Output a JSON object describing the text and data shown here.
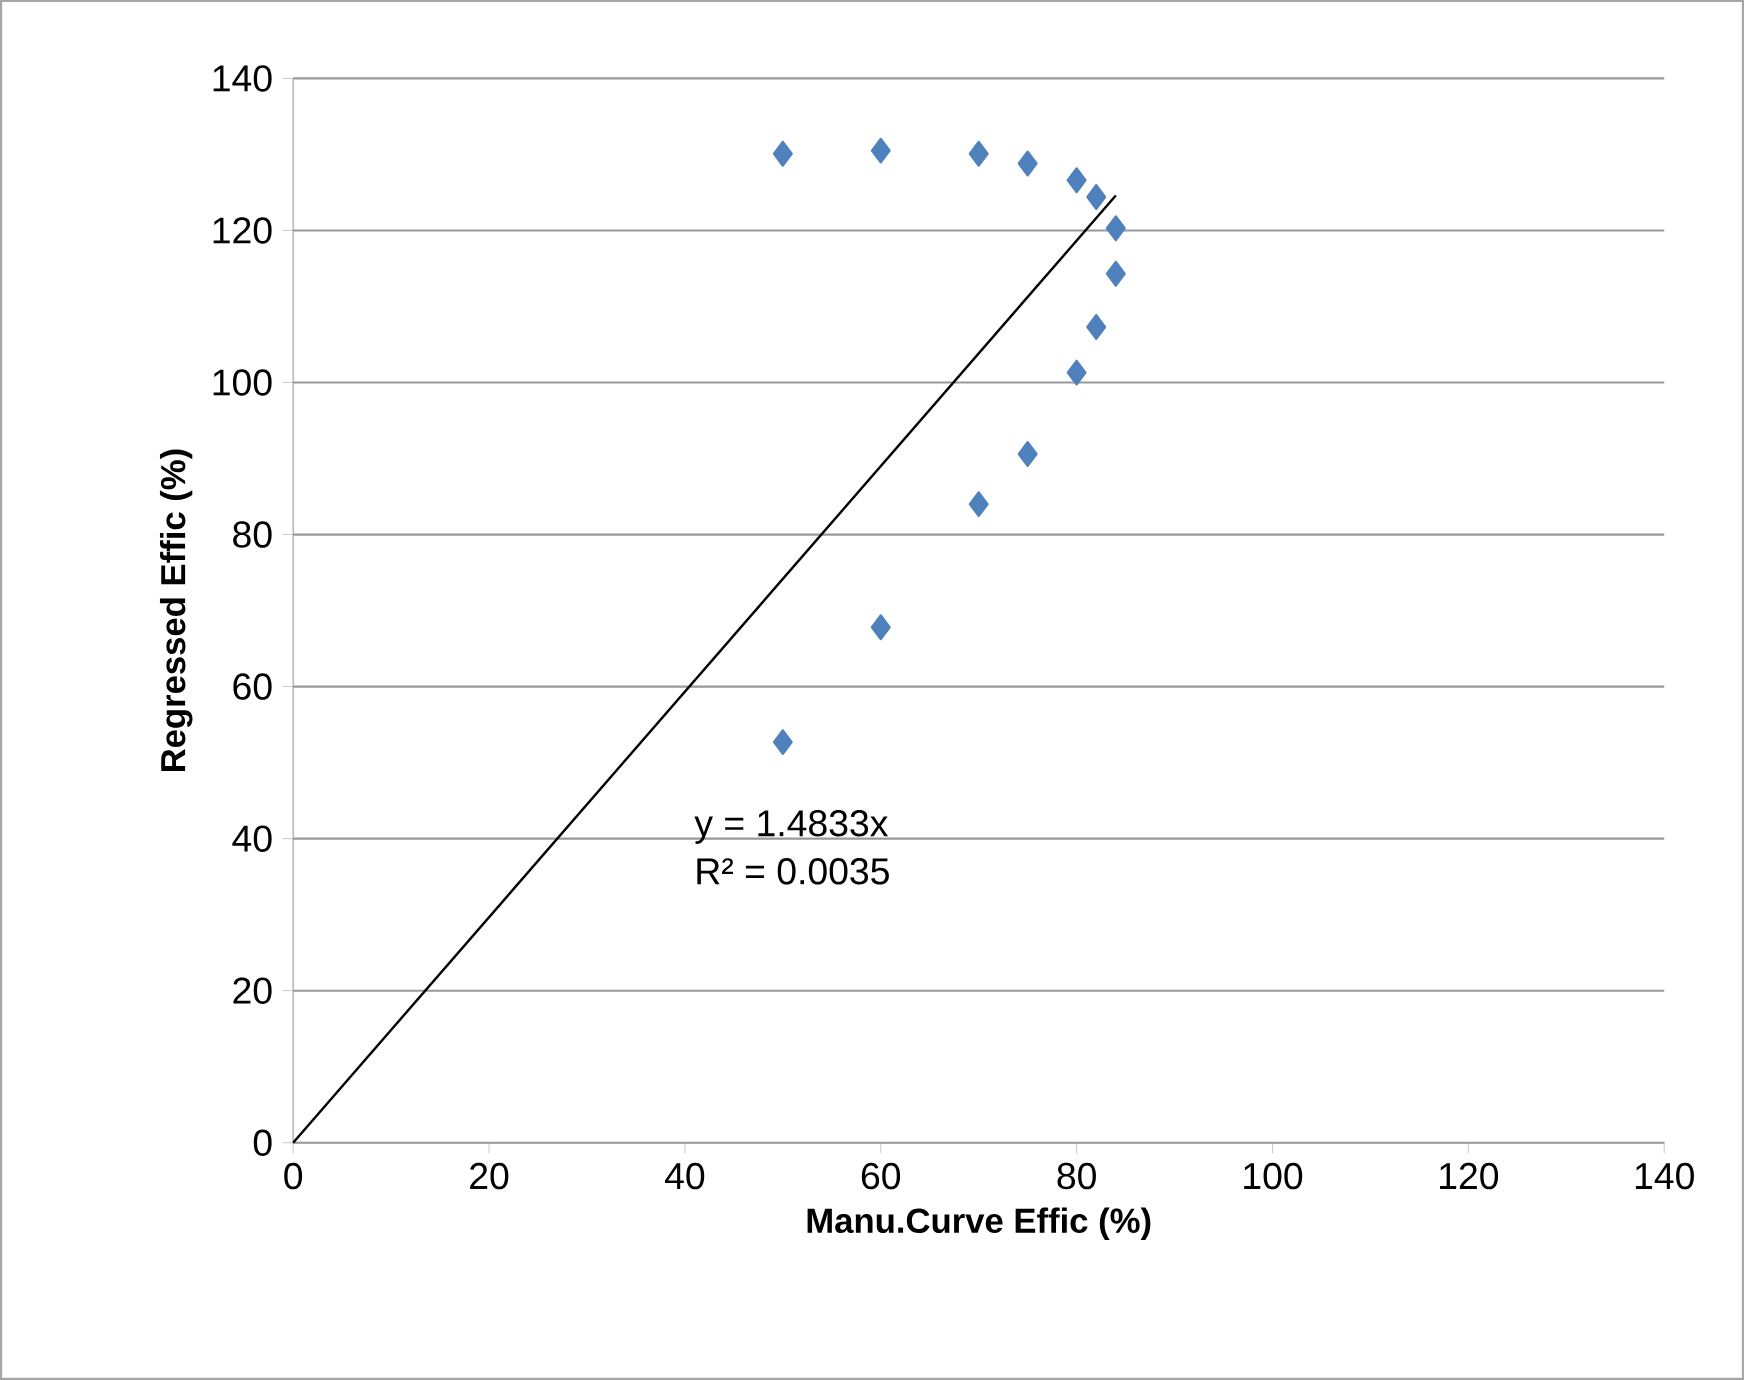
{
  "chart_data": {
    "type": "scatter",
    "xlabel": "Manu.Curve Effic (%)",
    "ylabel": "Regressed Effic (%)",
    "annotations": [
      "y = 1.4833x",
      "R² = 0.0035"
    ],
    "xlim": [
      0,
      140
    ],
    "ylim": [
      0,
      140
    ],
    "xticks": [
      0,
      20,
      40,
      60,
      80,
      100,
      120,
      140
    ],
    "yticks": [
      0,
      20,
      40,
      60,
      80,
      100,
      120,
      140
    ],
    "grid": "y",
    "marker": "diamond",
    "series": [
      {
        "color": "#4f81bd",
        "x": [
          50,
          60,
          70,
          75,
          80,
          82,
          84,
          84,
          82,
          80,
          75,
          70,
          60,
          50
        ],
        "values": [
          130.1,
          130.5,
          130.1,
          128.8,
          126.6,
          124.4,
          120.3,
          114.3,
          107.3,
          101.3,
          90.6,
          84.0,
          67.8,
          52.7
        ]
      },
      {
        "type": "line",
        "color": "#000000",
        "marker": "none",
        "line_style": "solid",
        "x": [
          0,
          84
        ],
        "values": [
          0,
          124.6
        ]
      }
    ]
  }
}
